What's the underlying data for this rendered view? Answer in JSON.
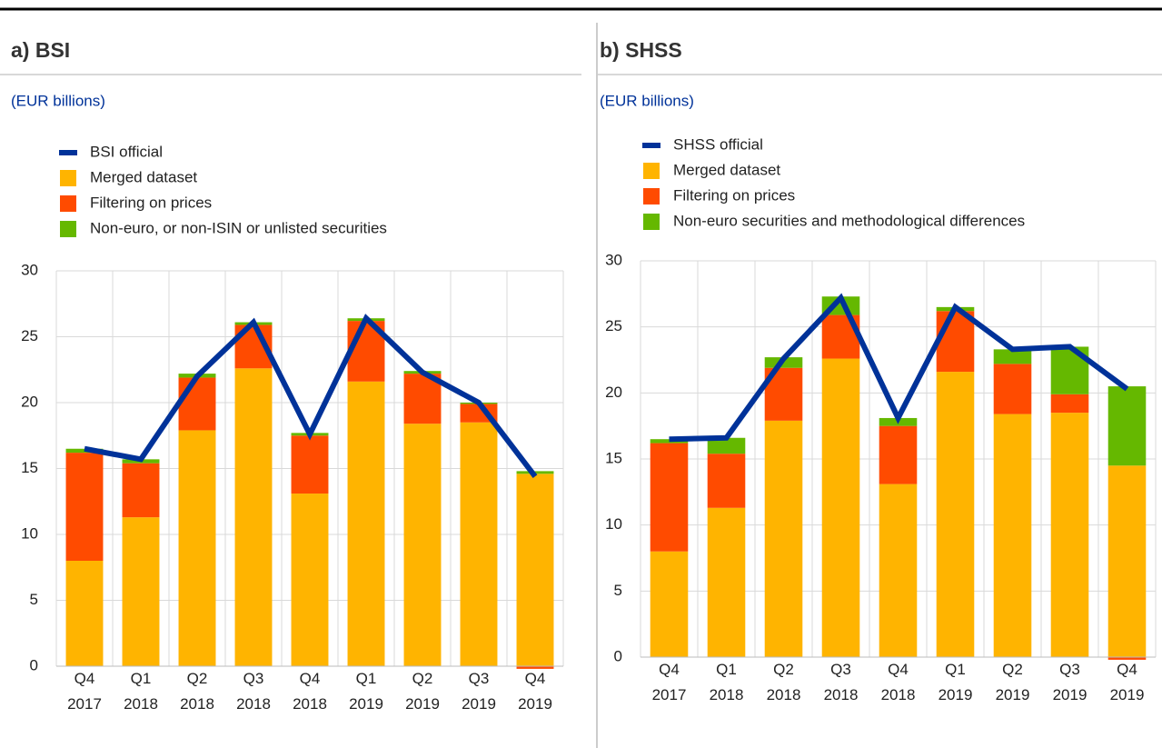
{
  "chart_data": [
    {
      "type": "bar",
      "stacked": true,
      "title": "a) BSI",
      "subtitle": "(EUR billions)",
      "categories": [
        "Q4 2017",
        "Q1 2018",
        "Q2 2018",
        "Q3 2018",
        "Q4 2018",
        "Q1 2019",
        "Q2 2019",
        "Q3 2019",
        "Q4 2019"
      ],
      "series": [
        {
          "name": "BSI official",
          "type": "line",
          "color": "#003299",
          "values": [
            16.5,
            15.7,
            22.0,
            26.1,
            17.6,
            26.4,
            22.3,
            20.0,
            14.4
          ]
        },
        {
          "name": "Merged dataset",
          "color": "#ffb400",
          "values": [
            8.0,
            11.3,
            17.9,
            22.6,
            13.1,
            21.6,
            18.4,
            18.5,
            14.6
          ]
        },
        {
          "name": "Filtering on prices",
          "color": "#ff4b00",
          "values": [
            8.2,
            4.1,
            4.0,
            3.3,
            4.4,
            4.6,
            3.8,
            1.4,
            -0.2
          ]
        },
        {
          "name": "Non-euro, or non-ISIN or unlisted securities",
          "color": "#65b800",
          "values": [
            0.3,
            0.3,
            0.3,
            0.2,
            0.2,
            0.2,
            0.2,
            0.1,
            0.2
          ]
        }
      ],
      "ylim": [
        0,
        30
      ],
      "yticks": [
        0,
        5,
        10,
        15,
        20,
        25,
        30
      ],
      "grid": true
    },
    {
      "type": "bar",
      "stacked": true,
      "title": "b) SHSS",
      "subtitle": "(EUR billions)",
      "categories": [
        "Q4 2017",
        "Q1 2018",
        "Q2 2018",
        "Q3 2018",
        "Q4 2018",
        "Q1 2019",
        "Q2 2019",
        "Q3 2019",
        "Q4 2019"
      ],
      "series": [
        {
          "name": "SHSS official",
          "type": "line",
          "color": "#003299",
          "values": [
            16.5,
            16.6,
            22.6,
            27.2,
            18.1,
            26.5,
            23.3,
            23.5,
            20.3
          ]
        },
        {
          "name": "Merged dataset",
          "color": "#ffb400",
          "values": [
            8.0,
            11.3,
            17.9,
            22.6,
            13.1,
            21.6,
            18.4,
            18.5,
            14.5
          ]
        },
        {
          "name": "Filtering on prices",
          "color": "#ff4b00",
          "values": [
            8.2,
            4.1,
            4.0,
            3.3,
            4.4,
            4.6,
            3.8,
            1.4,
            -0.2
          ]
        },
        {
          "name": "Non-euro securities and methodological differences",
          "color": "#65b800",
          "values": [
            0.3,
            1.2,
            0.8,
            1.4,
            0.6,
            0.3,
            1.1,
            3.6,
            6.0
          ]
        }
      ],
      "ylim": [
        0,
        30
      ],
      "yticks": [
        0,
        5,
        10,
        15,
        20,
        25,
        30
      ],
      "grid": true
    }
  ]
}
